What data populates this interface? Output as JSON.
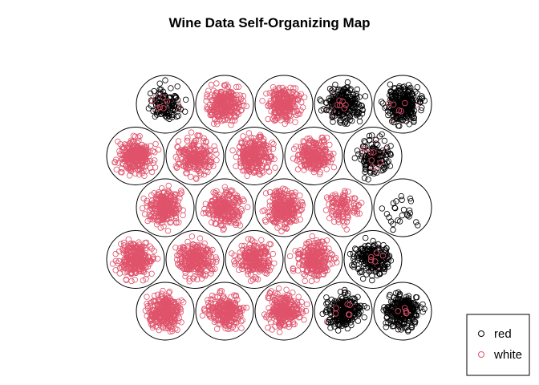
{
  "chart_data": {
    "type": "scatter",
    "title": "Wine Data Self-Organizing Map",
    "grid": {
      "rows": 5,
      "cols": 5,
      "topology": "hexagonal"
    },
    "axes_visible": false,
    "series": [
      {
        "name": "red",
        "color": "#000000"
      },
      {
        "name": "white",
        "color": "#DF536B"
      }
    ],
    "legend": {
      "position": "bottom-right",
      "entries": [
        "red",
        "white"
      ]
    },
    "nodes": [
      {
        "row": 1,
        "col": 1,
        "red": 120,
        "white": 10
      },
      {
        "row": 1,
        "col": 2,
        "red": 0,
        "white": 260
      },
      {
        "row": 1,
        "col": 3,
        "red": 0,
        "white": 250
      },
      {
        "row": 1,
        "col": 4,
        "red": 240,
        "white": 15
      },
      {
        "row": 1,
        "col": 5,
        "red": 280,
        "white": 5
      },
      {
        "row": 2,
        "col": 1,
        "red": 0,
        "white": 280
      },
      {
        "row": 2,
        "col": 2,
        "red": 0,
        "white": 220
      },
      {
        "row": 2,
        "col": 3,
        "red": 0,
        "white": 270
      },
      {
        "row": 2,
        "col": 4,
        "red": 0,
        "white": 230
      },
      {
        "row": 2,
        "col": 5,
        "red": 130,
        "white": 20
      },
      {
        "row": 3,
        "col": 1,
        "red": 0,
        "white": 260
      },
      {
        "row": 3,
        "col": 2,
        "red": 0,
        "white": 240
      },
      {
        "row": 3,
        "col": 3,
        "red": 0,
        "white": 280
      },
      {
        "row": 3,
        "col": 4,
        "red": 0,
        "white": 110
      },
      {
        "row": 3,
        "col": 5,
        "red": 25,
        "white": 0
      },
      {
        "row": 4,
        "col": 1,
        "red": 0,
        "white": 260
      },
      {
        "row": 4,
        "col": 2,
        "red": 0,
        "white": 270
      },
      {
        "row": 4,
        "col": 3,
        "red": 0,
        "white": 230
      },
      {
        "row": 4,
        "col": 4,
        "red": 0,
        "white": 250
      },
      {
        "row": 4,
        "col": 5,
        "red": 200,
        "white": 5
      },
      {
        "row": 5,
        "col": 1,
        "red": 0,
        "white": 300
      },
      {
        "row": 5,
        "col": 2,
        "red": 0,
        "white": 240
      },
      {
        "row": 5,
        "col": 3,
        "red": 0,
        "white": 250
      },
      {
        "row": 5,
        "col": 4,
        "red": 230,
        "white": 15
      },
      {
        "row": 5,
        "col": 5,
        "red": 260,
        "white": 5
      }
    ]
  }
}
